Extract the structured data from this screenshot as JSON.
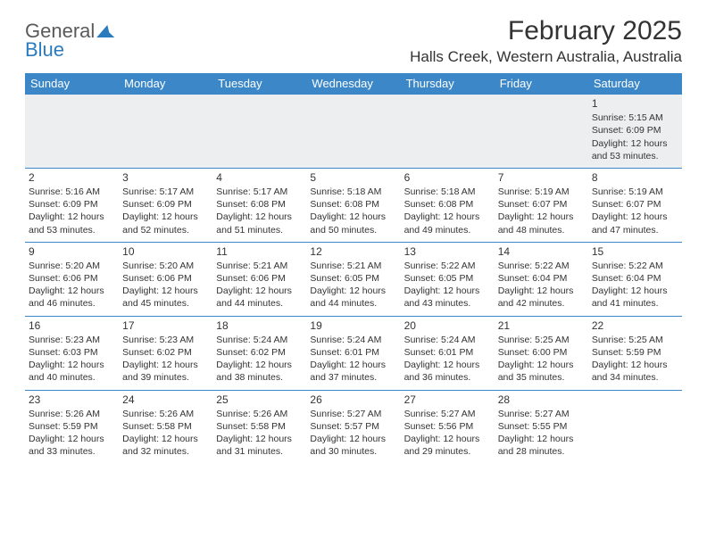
{
  "logo": {
    "line1": "General",
    "line2": "Blue"
  },
  "title": "February 2025",
  "location": "Halls Creek, Western Australia, Australia",
  "columns": [
    "Sunday",
    "Monday",
    "Tuesday",
    "Wednesday",
    "Thursday",
    "Friday",
    "Saturday"
  ],
  "colors": {
    "header_bg": "#3b87c8",
    "header_text": "#ffffff",
    "firstrow_bg": "#edeeef",
    "cell_border": "#3b87c8",
    "text": "#333333",
    "logo_gray": "#5a5a5a",
    "logo_blue": "#2b7bbf"
  },
  "weeks": [
    [
      null,
      null,
      null,
      null,
      null,
      null,
      {
        "n": "1",
        "sr": "Sunrise: 5:15 AM",
        "ss": "Sunset: 6:09 PM",
        "dl1": "Daylight: 12 hours",
        "dl2": "and 53 minutes."
      }
    ],
    [
      {
        "n": "2",
        "sr": "Sunrise: 5:16 AM",
        "ss": "Sunset: 6:09 PM",
        "dl1": "Daylight: 12 hours",
        "dl2": "and 53 minutes."
      },
      {
        "n": "3",
        "sr": "Sunrise: 5:17 AM",
        "ss": "Sunset: 6:09 PM",
        "dl1": "Daylight: 12 hours",
        "dl2": "and 52 minutes."
      },
      {
        "n": "4",
        "sr": "Sunrise: 5:17 AM",
        "ss": "Sunset: 6:08 PM",
        "dl1": "Daylight: 12 hours",
        "dl2": "and 51 minutes."
      },
      {
        "n": "5",
        "sr": "Sunrise: 5:18 AM",
        "ss": "Sunset: 6:08 PM",
        "dl1": "Daylight: 12 hours",
        "dl2": "and 50 minutes."
      },
      {
        "n": "6",
        "sr": "Sunrise: 5:18 AM",
        "ss": "Sunset: 6:08 PM",
        "dl1": "Daylight: 12 hours",
        "dl2": "and 49 minutes."
      },
      {
        "n": "7",
        "sr": "Sunrise: 5:19 AM",
        "ss": "Sunset: 6:07 PM",
        "dl1": "Daylight: 12 hours",
        "dl2": "and 48 minutes."
      },
      {
        "n": "8",
        "sr": "Sunrise: 5:19 AM",
        "ss": "Sunset: 6:07 PM",
        "dl1": "Daylight: 12 hours",
        "dl2": "and 47 minutes."
      }
    ],
    [
      {
        "n": "9",
        "sr": "Sunrise: 5:20 AM",
        "ss": "Sunset: 6:06 PM",
        "dl1": "Daylight: 12 hours",
        "dl2": "and 46 minutes."
      },
      {
        "n": "10",
        "sr": "Sunrise: 5:20 AM",
        "ss": "Sunset: 6:06 PM",
        "dl1": "Daylight: 12 hours",
        "dl2": "and 45 minutes."
      },
      {
        "n": "11",
        "sr": "Sunrise: 5:21 AM",
        "ss": "Sunset: 6:06 PM",
        "dl1": "Daylight: 12 hours",
        "dl2": "and 44 minutes."
      },
      {
        "n": "12",
        "sr": "Sunrise: 5:21 AM",
        "ss": "Sunset: 6:05 PM",
        "dl1": "Daylight: 12 hours",
        "dl2": "and 44 minutes."
      },
      {
        "n": "13",
        "sr": "Sunrise: 5:22 AM",
        "ss": "Sunset: 6:05 PM",
        "dl1": "Daylight: 12 hours",
        "dl2": "and 43 minutes."
      },
      {
        "n": "14",
        "sr": "Sunrise: 5:22 AM",
        "ss": "Sunset: 6:04 PM",
        "dl1": "Daylight: 12 hours",
        "dl2": "and 42 minutes."
      },
      {
        "n": "15",
        "sr": "Sunrise: 5:22 AM",
        "ss": "Sunset: 6:04 PM",
        "dl1": "Daylight: 12 hours",
        "dl2": "and 41 minutes."
      }
    ],
    [
      {
        "n": "16",
        "sr": "Sunrise: 5:23 AM",
        "ss": "Sunset: 6:03 PM",
        "dl1": "Daylight: 12 hours",
        "dl2": "and 40 minutes."
      },
      {
        "n": "17",
        "sr": "Sunrise: 5:23 AM",
        "ss": "Sunset: 6:02 PM",
        "dl1": "Daylight: 12 hours",
        "dl2": "and 39 minutes."
      },
      {
        "n": "18",
        "sr": "Sunrise: 5:24 AM",
        "ss": "Sunset: 6:02 PM",
        "dl1": "Daylight: 12 hours",
        "dl2": "and 38 minutes."
      },
      {
        "n": "19",
        "sr": "Sunrise: 5:24 AM",
        "ss": "Sunset: 6:01 PM",
        "dl1": "Daylight: 12 hours",
        "dl2": "and 37 minutes."
      },
      {
        "n": "20",
        "sr": "Sunrise: 5:24 AM",
        "ss": "Sunset: 6:01 PM",
        "dl1": "Daylight: 12 hours",
        "dl2": "and 36 minutes."
      },
      {
        "n": "21",
        "sr": "Sunrise: 5:25 AM",
        "ss": "Sunset: 6:00 PM",
        "dl1": "Daylight: 12 hours",
        "dl2": "and 35 minutes."
      },
      {
        "n": "22",
        "sr": "Sunrise: 5:25 AM",
        "ss": "Sunset: 5:59 PM",
        "dl1": "Daylight: 12 hours",
        "dl2": "and 34 minutes."
      }
    ],
    [
      {
        "n": "23",
        "sr": "Sunrise: 5:26 AM",
        "ss": "Sunset: 5:59 PM",
        "dl1": "Daylight: 12 hours",
        "dl2": "and 33 minutes."
      },
      {
        "n": "24",
        "sr": "Sunrise: 5:26 AM",
        "ss": "Sunset: 5:58 PM",
        "dl1": "Daylight: 12 hours",
        "dl2": "and 32 minutes."
      },
      {
        "n": "25",
        "sr": "Sunrise: 5:26 AM",
        "ss": "Sunset: 5:58 PM",
        "dl1": "Daylight: 12 hours",
        "dl2": "and 31 minutes."
      },
      {
        "n": "26",
        "sr": "Sunrise: 5:27 AM",
        "ss": "Sunset: 5:57 PM",
        "dl1": "Daylight: 12 hours",
        "dl2": "and 30 minutes."
      },
      {
        "n": "27",
        "sr": "Sunrise: 5:27 AM",
        "ss": "Sunset: 5:56 PM",
        "dl1": "Daylight: 12 hours",
        "dl2": "and 29 minutes."
      },
      {
        "n": "28",
        "sr": "Sunrise: 5:27 AM",
        "ss": "Sunset: 5:55 PM",
        "dl1": "Daylight: 12 hours",
        "dl2": "and 28 minutes."
      },
      null
    ]
  ]
}
